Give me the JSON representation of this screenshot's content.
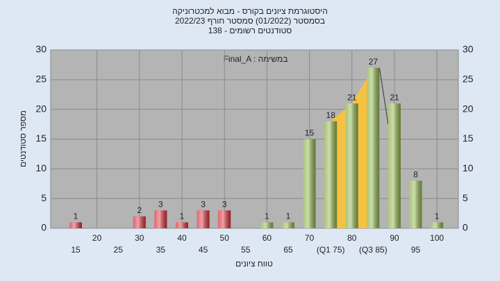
{
  "chart_data": {
    "type": "bar",
    "title": [
      "היסטוגרמת ציונים בקורס - מבוא למכטרוניקה",
      "בסמסטר  (01/2022)  סמסטר חורף 2022/23",
      "סטודנטים רשומים - 138"
    ],
    "annotation": "Final_A : במשימה",
    "x_label": "טווח ציונים",
    "y_label": "מספר סטודנטים",
    "categories": [
      "15",
      "20",
      "25",
      "30",
      "35",
      "40",
      "45",
      "50",
      "55",
      "60",
      "65",
      "70",
      "(Q1 75)",
      "80",
      "(Q3 85)",
      "90",
      "95",
      "100"
    ],
    "values": [
      1,
      0,
      0,
      2,
      3,
      1,
      3,
      3,
      0,
      1,
      1,
      15,
      18,
      21,
      27,
      21,
      8,
      1
    ],
    "colors": [
      "#d9303a",
      "#d9303a",
      "#d9303a",
      "#d9303a",
      "#d9303a",
      "#d9303a",
      "#d9303a",
      "#d9303a",
      "#d9303a",
      "#8fb34a",
      "#8fb34a",
      "#8fb34a",
      "#8fb34a",
      "#8fb34a",
      "#8fb34a",
      "#8fb34a",
      "#8fb34a",
      "#8fb34a"
    ],
    "quartile_color": "#f5c242",
    "ylim": [
      0,
      30
    ],
    "yticks": [
      0,
      5,
      10,
      15,
      20,
      25,
      30
    ],
    "grid": true
  }
}
